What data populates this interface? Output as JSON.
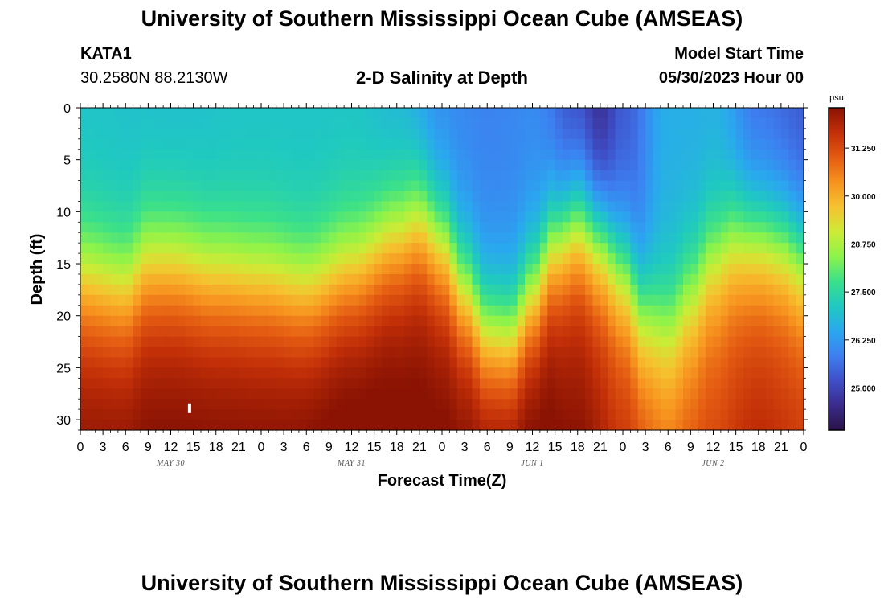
{
  "header": {
    "title": "University of Southern Mississippi Ocean Cube (AMSEAS)",
    "station": "KATA1",
    "coords": "30.2580N  88.2130W",
    "plot_title": "2-D Salinity at Depth",
    "model_label": "Model Start Time",
    "model_time": "05/30/2023 Hour 00"
  },
  "footer": {
    "title": "University of Southern Mississippi Ocean Cube (AMSEAS)"
  },
  "colors": {
    "scale": [
      "#2a1347",
      "#3b2b8c",
      "#3f4fc8",
      "#3d7ff0",
      "#2aa8ef",
      "#1fc9c0",
      "#3ae08a",
      "#8cf34a",
      "#cdeb36",
      "#f6c22f",
      "#f7931f",
      "#e45b12",
      "#c22f08",
      "#8a1303"
    ]
  },
  "chart_data": {
    "type": "heatmap",
    "title": "2-D Salinity at Depth",
    "xlabel": "Forecast Time(Z)",
    "ylabel": "Depth (ft)",
    "x_ticks": [
      "0",
      "3",
      "6",
      "9",
      "12",
      "15",
      "18",
      "21",
      "0",
      "3",
      "6",
      "9",
      "12",
      "15",
      "18",
      "21",
      "0",
      "3",
      "6",
      "9",
      "12",
      "15",
      "18",
      "21",
      "0",
      "3",
      "6",
      "9",
      "12",
      "15",
      "18",
      "21",
      "0"
    ],
    "x_range_hours": [
      0,
      96
    ],
    "date_labels": [
      {
        "label": "MAY 30",
        "hour": 12
      },
      {
        "label": "MAY 31",
        "hour": 36
      },
      {
        "label": "JUN 1",
        "hour": 60
      },
      {
        "label": "JUN 2",
        "hour": 84
      }
    ],
    "y_ticks": [
      0,
      5,
      10,
      15,
      20,
      25,
      30
    ],
    "y_range_ft": [
      0,
      31
    ],
    "colorbar": {
      "unit": "psu",
      "ticks": [
        "31.250",
        "30.000",
        "28.750",
        "27.500",
        "26.250",
        "25.000"
      ],
      "tick_values": [
        31.25,
        30.0,
        28.75,
        27.5,
        26.25,
        25.0
      ],
      "range": [
        23.9,
        32.3
      ]
    },
    "halocline_depth_ft": [
      [
        0,
        16.5
      ],
      [
        6,
        17.5
      ],
      [
        9,
        15
      ],
      [
        12,
        15
      ],
      [
        18,
        16
      ],
      [
        24,
        16.5
      ],
      [
        30,
        17.5
      ],
      [
        36,
        15.5
      ],
      [
        42,
        12.5
      ],
      [
        45,
        11
      ],
      [
        48,
        13
      ],
      [
        51,
        17.5
      ],
      [
        54,
        21.5
      ],
      [
        57,
        22
      ],
      [
        60,
        18
      ],
      [
        63,
        13
      ],
      [
        66,
        11
      ],
      [
        69,
        12.5
      ],
      [
        72,
        15.5
      ],
      [
        75,
        20
      ],
      [
        78,
        21
      ],
      [
        81,
        18
      ],
      [
        84,
        14.5
      ],
      [
        87,
        12.5
      ],
      [
        90,
        12.5
      ],
      [
        93,
        13
      ],
      [
        96,
        14.5
      ]
    ],
    "surface_salinity_psu": [
      [
        0,
        27.0
      ],
      [
        12,
        26.9
      ],
      [
        24,
        27.0
      ],
      [
        36,
        27.0
      ],
      [
        42,
        26.7
      ],
      [
        48,
        26.0
      ],
      [
        54,
        25.9
      ],
      [
        60,
        26.0
      ],
      [
        66,
        25.0
      ],
      [
        69,
        24.5
      ],
      [
        72,
        25.3
      ],
      [
        78,
        26.6
      ],
      [
        84,
        26.6
      ],
      [
        90,
        25.6
      ],
      [
        96,
        25.3
      ]
    ],
    "deep_salinity_psu": [
      [
        0,
        31.9
      ],
      [
        12,
        32.0
      ],
      [
        24,
        32.0
      ],
      [
        36,
        32.2
      ],
      [
        48,
        32.0
      ],
      [
        60,
        32.2
      ],
      [
        66,
        31.8
      ],
      [
        72,
        31.2
      ],
      [
        78,
        30.6
      ],
      [
        84,
        30.9
      ],
      [
        90,
        31.3
      ],
      [
        96,
        31.1
      ]
    ],
    "marker": {
      "hour": 14.5,
      "depth_ft": 28.9
    }
  }
}
